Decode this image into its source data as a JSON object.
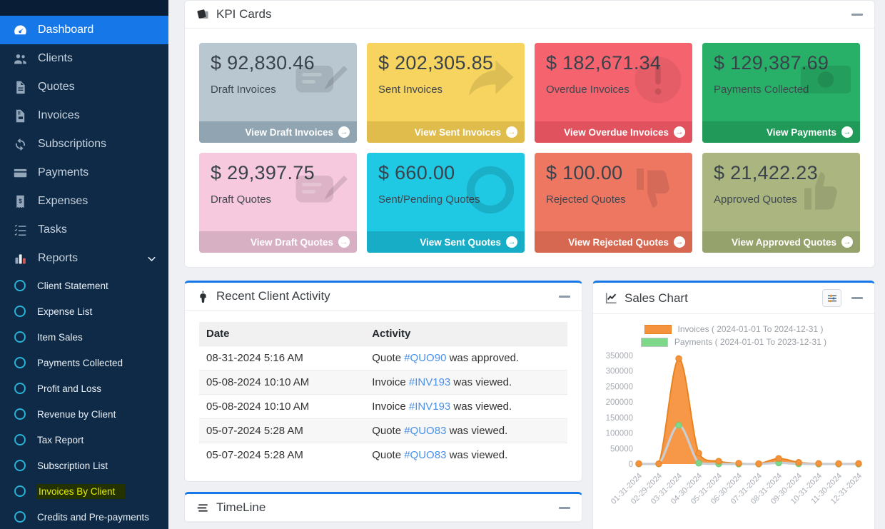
{
  "accent_color": "#1677e8",
  "sidebar": {
    "items": [
      {
        "label": "Dashboard",
        "icon": "gauge",
        "active": true
      },
      {
        "label": "Clients",
        "icon": "users"
      },
      {
        "label": "Quotes",
        "icon": "file"
      },
      {
        "label": "Invoices",
        "icon": "file-invoice"
      },
      {
        "label": "Subscriptions",
        "icon": "sync"
      },
      {
        "label": "Payments",
        "icon": "credit-card"
      },
      {
        "label": "Expenses",
        "icon": "receipt"
      },
      {
        "label": "Tasks",
        "icon": "tasks"
      },
      {
        "label": "Reports",
        "icon": "bar-chart",
        "expanded": true
      }
    ],
    "report_items": [
      {
        "label": "Client Statement"
      },
      {
        "label": "Expense List"
      },
      {
        "label": "Item Sales"
      },
      {
        "label": "Payments Collected"
      },
      {
        "label": "Profit and Loss"
      },
      {
        "label": "Revenue by Client"
      },
      {
        "label": "Tax Report"
      },
      {
        "label": "Subscription List"
      },
      {
        "label": "Invoices By Client",
        "highlighted": true
      },
      {
        "label": "Credits and Pre-payments"
      }
    ]
  },
  "kpi_panel": {
    "title": "KPI Cards",
    "cards": [
      {
        "amount": "$ 92,830.46",
        "label": "Draft Invoices",
        "action": "View Draft Invoices",
        "bg": "#b9c7d1",
        "footer_bg": "#90a5b1",
        "icon": "pencil-note"
      },
      {
        "amount": "$ 202,305.85",
        "label": "Sent Invoices",
        "action": "View Sent Invoices",
        "bg": "#f6d45f",
        "footer_bg": "#dfbc4c",
        "icon": "share-arrow"
      },
      {
        "amount": "$ 182,671.34",
        "label": "Overdue Invoices",
        "action": "View Overdue Invoices",
        "bg": "#f4636e",
        "footer_bg": "#df525e",
        "icon": "exclamation-circle"
      },
      {
        "amount": "$ 129,387.69",
        "label": "Payments Collected",
        "action": "View Payments",
        "bg": "#29b068",
        "footer_bg": "#219a59",
        "icon": "money-bill"
      },
      {
        "amount": "$ 29,397.75",
        "label": "Draft Quotes",
        "action": "View Draft Quotes",
        "bg": "#f6c9de",
        "footer_bg": "#d8b0c4",
        "icon": "pencil-note"
      },
      {
        "amount": "$ 660.00",
        "label": "Sent/Pending Quotes",
        "action": "View Sent Quotes",
        "bg": "#1fc8e3",
        "footer_bg": "#17adc6",
        "icon": "ring"
      },
      {
        "amount": "$ 100.00",
        "label": "Rejected Quotes",
        "action": "View Rejected Quotes",
        "bg": "#ee7762",
        "footer_bg": "#d66750",
        "icon": "thumbs-down"
      },
      {
        "amount": "$ 21,422.23",
        "label": "Approved Quotes",
        "action": "View Approved Quotes",
        "bg": "#aab580",
        "footer_bg": "#96a26c",
        "icon": "thumbs-up"
      }
    ]
  },
  "activity_panel": {
    "title": "Recent Client Activity",
    "columns": [
      "Date",
      "Activity"
    ],
    "rows": [
      {
        "date": "08-31-2024 5:16 AM",
        "before": "Quote ",
        "link": "#QUO90",
        "after": " was approved."
      },
      {
        "date": "05-08-2024 10:10 AM",
        "before": "Invoice ",
        "link": "#INV193",
        "after": " was viewed."
      },
      {
        "date": "05-08-2024 10:10 AM",
        "before": "Invoice ",
        "link": "#INV193",
        "after": " was viewed."
      },
      {
        "date": "05-07-2024 5:28 AM",
        "before": "Quote ",
        "link": "#QUO83",
        "after": " was viewed."
      },
      {
        "date": "05-07-2024 5:28 AM",
        "before": "Quote ",
        "link": "#QUO83",
        "after": " was viewed."
      }
    ]
  },
  "sales_panel": {
    "title": "Sales Chart"
  },
  "timeline_panel": {
    "title": "TimeLine"
  },
  "chart_data": {
    "type": "area",
    "title": "Sales Chart",
    "xlabel": "",
    "ylabel": "",
    "x": [
      "01-31-2024",
      "02-29-2024",
      "03-31-2024",
      "04-30-2024",
      "05-31-2024",
      "06-30-2024",
      "07-31-2024",
      "08-31-2024",
      "09-30-2024",
      "10-31-2024",
      "11-30-2024",
      "12-31-2024"
    ],
    "series": [
      {
        "name": "Invoices ( 2024-01-01 To 2024-12-31 )",
        "type": "area",
        "color": "#f5923e",
        "border": "#e8831f",
        "values": [
          1200,
          900,
          340000,
          35000,
          9000,
          2500,
          900,
          18000,
          5200,
          1500,
          1200,
          1500
        ]
      },
      {
        "name": "Payments ( 2024-01-01 To 2023-12-31 )",
        "type": "line",
        "color": "#7dd989",
        "border": "#c2c7cc",
        "line_color": "#c9ced4",
        "values": [
          400,
          400,
          125000,
          2800,
          600,
          300,
          300,
          3600,
          800,
          300,
          300,
          300
        ]
      }
    ],
    "ylim": [
      0,
      350000
    ],
    "yticks": [
      0,
      50000,
      100000,
      150000,
      200000,
      250000,
      300000,
      350000
    ],
    "grid": false,
    "legend_position": "top"
  }
}
